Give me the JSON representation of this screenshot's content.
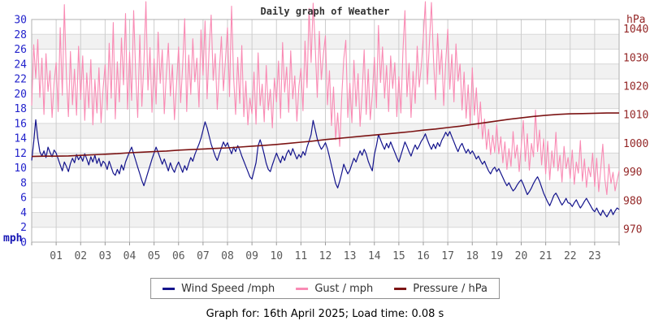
{
  "title": "Daily graph of Weather",
  "footer": {
    "text": "Graph for: 16th April 2025; Load time: 0.08 s"
  },
  "chart_data": {
    "type": "line",
    "title": "Daily graph of Weather",
    "grid": true,
    "legend_position": "bottom",
    "x": {
      "unit": "hour",
      "min": 0,
      "max": 24,
      "ticks": [
        "01",
        "02",
        "03",
        "04",
        "05",
        "06",
        "07",
        "08",
        "09",
        "10",
        "11",
        "12",
        "13",
        "14",
        "15",
        "16",
        "17",
        "18",
        "19",
        "20",
        "21",
        "22",
        "23"
      ],
      "tick_color": "#595959"
    },
    "y_left": {
      "label": "mph",
      "min": 0,
      "max": 30,
      "tick_step": 2,
      "ticks": [
        0,
        2,
        4,
        6,
        8,
        10,
        12,
        14,
        16,
        18,
        20,
        22,
        24,
        26,
        28,
        30
      ],
      "color": "#2323cc"
    },
    "y_right": {
      "label": "hPa",
      "min": 970,
      "max": 1040,
      "tick_step": 10,
      "ticks": [
        970,
        980,
        990,
        1000,
        1010,
        1020,
        1030,
        1040
      ],
      "color": "#942727"
    },
    "series": [
      {
        "id": "wind-speed",
        "name": "Wind Speed /mph",
        "color": "#14148c",
        "axis": "left",
        "z": 2,
        "stroke_width": 1.2,
        "interval_minutes": 5,
        "values": [
          11.0,
          13.5,
          16.5,
          14.0,
          12.2,
          11.6,
          12.3,
          11.4,
          12.8,
          12.1,
          11.5,
          12.4,
          12.0,
          11.2,
          10.4,
          9.6,
          10.8,
          10.2,
          9.5,
          10.6,
          11.3,
          10.7,
          11.8,
          11.1,
          11.6,
          10.9,
          11.9,
          11.2,
          10.4,
          11.5,
          10.8,
          11.7,
          10.6,
          11.3,
          10.2,
          10.9,
          10.6,
          9.8,
          10.9,
          10.1,
          9.3,
          9.0,
          9.8,
          9.2,
          10.4,
          9.7,
          10.8,
          11.5,
          12.2,
          12.8,
          11.9,
          11.0,
          10.1,
          9.2,
          8.3,
          7.6,
          8.5,
          9.4,
          10.3,
          11.2,
          12.0,
          12.8,
          12.1,
          11.3,
          10.5,
          11.2,
          10.4,
          9.6,
          10.7,
          9.9,
          9.4,
          10.2,
          10.8,
          10.1,
          9.4,
          10.3,
          9.7,
          10.6,
          11.4,
          10.9,
          11.8,
          12.5,
          13.2,
          14.0,
          15.1,
          16.2,
          15.4,
          14.3,
          13.2,
          12.4,
          11.6,
          11.0,
          11.9,
          12.7,
          13.5,
          12.9,
          13.4,
          12.6,
          11.9,
          12.8,
          12.2,
          13.0,
          12.4,
          11.6,
          10.9,
          10.2,
          9.5,
          8.8,
          8.5,
          9.6,
          10.7,
          13.0,
          13.8,
          12.9,
          11.8,
          10.6,
          9.8,
          9.5,
          10.4,
          11.2,
          12.0,
          11.3,
          10.7,
          11.6,
          11.0,
          11.9,
          12.4,
          11.7,
          12.6,
          11.9,
          11.2,
          11.8,
          11.4,
          12.2,
          11.7,
          12.8,
          13.6,
          14.5,
          16.4,
          15.2,
          13.9,
          13.1,
          12.5,
          12.9,
          13.4,
          12.6,
          11.5,
          10.3,
          9.1,
          7.9,
          7.3,
          8.2,
          9.3,
          10.5,
          9.8,
          9.2,
          9.7,
          10.5,
          11.3,
          10.8,
          11.6,
          12.3,
          11.7,
          12.5,
          11.9,
          10.9,
          10.2,
          9.6,
          11.8,
          13.0,
          14.5,
          13.8,
          13.1,
          12.5,
          13.3,
          12.7,
          13.5,
          12.8,
          12.1,
          11.4,
          10.8,
          11.7,
          12.6,
          13.5,
          12.9,
          12.2,
          11.6,
          12.4,
          13.1,
          12.5,
          13.0,
          13.6,
          14.0,
          14.6,
          13.8,
          13.1,
          12.5,
          13.2,
          12.6,
          13.4,
          12.9,
          13.7,
          14.2,
          14.8,
          14.3,
          14.9,
          14.2,
          13.5,
          12.8,
          12.2,
          12.9,
          13.3,
          12.6,
          12.0,
          12.5,
          11.9,
          12.3,
          11.8,
          11.2,
          11.6,
          11.0,
          10.5,
          10.9,
          10.2,
          9.6,
          9.2,
          9.8,
          10.1,
          9.5,
          9.9,
          9.3,
          8.7,
          8.1,
          7.6,
          8.0,
          7.4,
          6.9,
          7.2,
          7.7,
          8.1,
          8.4,
          7.8,
          7.1,
          6.4,
          6.8,
          7.3,
          7.9,
          8.4,
          8.8,
          8.2,
          7.4,
          6.6,
          6.0,
          5.4,
          4.9,
          5.6,
          6.3,
          6.6,
          6.1,
          5.5,
          5.0,
          5.4,
          5.9,
          5.3,
          5.2,
          4.8,
          5.3,
          5.7,
          5.1,
          4.6,
          5.0,
          5.5,
          5.9,
          5.4,
          4.9,
          4.4,
          4.1,
          4.6,
          4.0,
          3.6,
          4.3,
          3.8,
          3.4,
          3.9,
          4.4,
          3.7,
          4.2,
          4.6,
          4.4
        ]
      },
      {
        "id": "gust",
        "name": "Gust / mph",
        "color": "#f98bb4",
        "axis": "left",
        "z": 1,
        "stroke_width": 1.1,
        "interval_minutes": 5,
        "values": [
          18.4,
          26.6,
          22.1,
          27.3,
          19.5,
          24.8,
          17.2,
          25.4,
          20.3,
          23.1,
          16.8,
          21.5,
          24.2,
          17.6,
          28.9,
          19.8,
          32.0,
          22.4,
          16.9,
          25.7,
          18.5,
          23.3,
          17.1,
          26.4,
          19.2,
          25.1,
          16.4,
          22.8,
          18.1,
          24.6,
          15.8,
          21.9,
          17.4,
          23.5,
          16.1,
          20.7,
          23.9,
          17.8,
          26.8,
          19.4,
          29.6,
          16.6,
          24.3,
          18.9,
          27.5,
          21.2,
          30.8,
          17.9,
          25.6,
          19.1,
          31.2,
          22.7,
          16.8,
          27.9,
          18.3,
          24.1,
          32.4,
          20.5,
          26.2,
          17.5,
          24.7,
          18.6,
          28.3,
          21.4,
          25.9,
          17.3,
          22.6,
          26.8,
          19.7,
          23.9,
          16.5,
          21.1,
          26.3,
          18.8,
          23.7,
          30.1,
          17.6,
          25.2,
          19.9,
          27.4,
          21.6,
          24.8,
          18.2,
          28.6,
          22.5,
          29.8,
          19.3,
          26.1,
          30.6,
          21.8,
          25.4,
          17.9,
          23.2,
          27.7,
          20.4,
          24.6,
          28.9,
          19.6,
          31.8,
          22.3,
          17.2,
          24.9,
          18.7,
          26.5,
          16.9,
          21.7,
          15.8,
          19.4,
          17.3,
          22.9,
          15.9,
          25.5,
          18.4,
          21.3,
          16.2,
          23.8,
          17.8,
          20.6,
          15.4,
          22.1,
          18.9,
          24.4,
          16.7,
          26.9,
          20.2,
          23.6,
          17.5,
          25.8,
          19.3,
          22.4,
          16.3,
          21.0,
          23.4,
          17.7,
          27.1,
          20.8,
          31.5,
          24.2,
          32.2,
          26.6,
          19.5,
          28.4,
          21.9,
          25.3,
          27.8,
          18.5,
          23.1,
          15.7,
          20.9,
          13.8,
          17.4,
          12.9,
          19.6,
          24.7,
          27.2,
          16.8,
          21.4,
          16.1,
          24.5,
          18.3,
          22.7,
          15.6,
          20.1,
          25.9,
          17.2,
          23.3,
          16.5,
          19.8,
          24.9,
          18.1,
          29.2,
          21.5,
          26.3,
          19.4,
          23.8,
          17.6,
          25.1,
          20.7,
          24.2,
          16.9,
          22.3,
          17.4,
          25.7,
          31.2,
          19.6,
          24.1,
          16.8,
          23.0,
          18.7,
          26.4,
          20.9,
          23.7,
          27.6,
          32.4,
          21.3,
          26.8,
          32.3,
          24.5,
          19.2,
          28.1,
          22.6,
          25.9,
          18.4,
          24.3,
          28.7,
          20.6,
          25.3,
          18.9,
          26.7,
          21.7,
          24.0,
          17.8,
          22.9,
          16.7,
          21.2,
          15.9,
          23.5,
          17.1,
          20.8,
          15.3,
          18.9,
          13.9,
          16.6,
          12.5,
          15.2,
          11.8,
          14.4,
          12.1,
          15.8,
          11.9,
          14.2,
          10.7,
          13.5,
          9.8,
          12.6,
          10.2,
          14.9,
          11.3,
          13.1,
          9.5,
          12.8,
          16.4,
          10.9,
          14.6,
          9.7,
          13.3,
          11.5,
          17.8,
          12.2,
          15.1,
          10.4,
          13.9,
          9.2,
          13.6,
          8.4,
          12.3,
          10.1,
          14.8,
          9.6,
          11.7,
          8.1,
          12.9,
          9.9,
          11.4,
          8.6,
          12.4,
          7.8,
          10.8,
          9.3,
          13.7,
          8.2,
          11.2,
          7.4,
          10.1,
          8.8,
          12.0,
          7.5,
          11.3,
          6.8,
          9.9,
          13.2,
          8.5,
          6.4,
          10.5,
          7.9,
          9.4,
          6.9,
          8.3,
          9.6
        ]
      },
      {
        "id": "pressure",
        "name": "Pressure / hPa",
        "color": "#7c1414",
        "axis": "right",
        "z": 3,
        "stroke_width": 1.6,
        "interval_minutes": 30,
        "values": [
          995.4,
          995.5,
          995.5,
          995.6,
          995.8,
          996.0,
          996.2,
          996.4,
          996.7,
          996.9,
          997.1,
          997.3,
          997.6,
          997.8,
          998.0,
          998.2,
          998.4,
          998.7,
          999.0,
          999.3,
          999.6,
          1000.0,
          1000.4,
          1000.8,
          1001.3,
          1001.7,
          1002.1,
          1002.5,
          1002.9,
          1003.3,
          1003.7,
          1004.1,
          1004.6,
          1005.0,
          1005.5,
          1006.0,
          1006.6,
          1007.2,
          1007.8,
          1008.4,
          1008.9,
          1009.4,
          1009.8,
          1010.1,
          1010.3,
          1010.4,
          1010.5,
          1010.6,
          1010.6
        ]
      }
    ]
  }
}
